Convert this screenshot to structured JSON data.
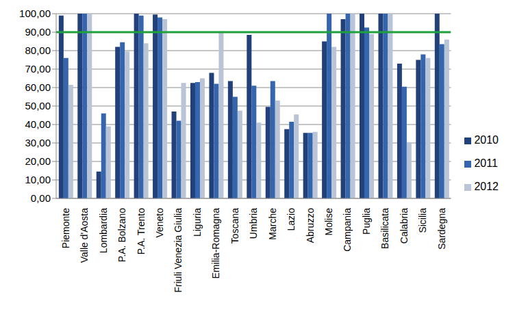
{
  "chart_data": {
    "type": "bar",
    "categories": [
      "Piemonte",
      "Valle d'Aosta",
      "Lombardia",
      "P.A. Bolzano",
      "P.A. Trento",
      "Veneto",
      "Friuli Venezia Giulia",
      "Liguria",
      "Emilia-Romagna",
      "Toscana",
      "Umbria",
      "Marche",
      "Lazio",
      "Abruzzo",
      "Molise",
      "Campania",
      "Puglia",
      "Basilicata",
      "Calabria",
      "Sicilia",
      "Sardegna"
    ],
    "series": [
      {
        "name": "2010",
        "color": "#22407a",
        "values": [
          99,
          100,
          14.5,
          82,
          100,
          99.5,
          47,
          62.5,
          68,
          63.5,
          88.5,
          49.5,
          37.5,
          35.5,
          85,
          97,
          100,
          100,
          73,
          75,
          100
        ]
      },
      {
        "name": "2011",
        "color": "#3566ad",
        "values": [
          76,
          100,
          46,
          84.5,
          99,
          98,
          42,
          63,
          62,
          55,
          61,
          63.5,
          41.5,
          35.5,
          100,
          100,
          92.5,
          100,
          60.5,
          78,
          83.5
        ]
      },
      {
        "name": "2012",
        "color": "#b9c4d6",
        "values": [
          61.5,
          100,
          39,
          79.5,
          84,
          97,
          62.5,
          65,
          90.5,
          47.5,
          41,
          53,
          45.5,
          36,
          82,
          100,
          89,
          100,
          30.5,
          76,
          86
        ]
      }
    ],
    "target": 90,
    "ylim": [
      0,
      100
    ],
    "yticks": [
      {
        "value": 0,
        "label": "0,00"
      },
      {
        "value": 10,
        "label": "10,00"
      },
      {
        "value": 20,
        "label": "20,00"
      },
      {
        "value": 30,
        "label": "30,00"
      },
      {
        "value": 40,
        "label": "40,00"
      },
      {
        "value": 50,
        "label": "50,00"
      },
      {
        "value": 60,
        "label": "60,00"
      },
      {
        "value": 70,
        "label": "70,00"
      },
      {
        "value": 80,
        "label": "80,00"
      },
      {
        "value": 90,
        "label": "90,00"
      },
      {
        "value": 100,
        "label": "100,00"
      }
    ],
    "grid": true,
    "legend": "right"
  }
}
